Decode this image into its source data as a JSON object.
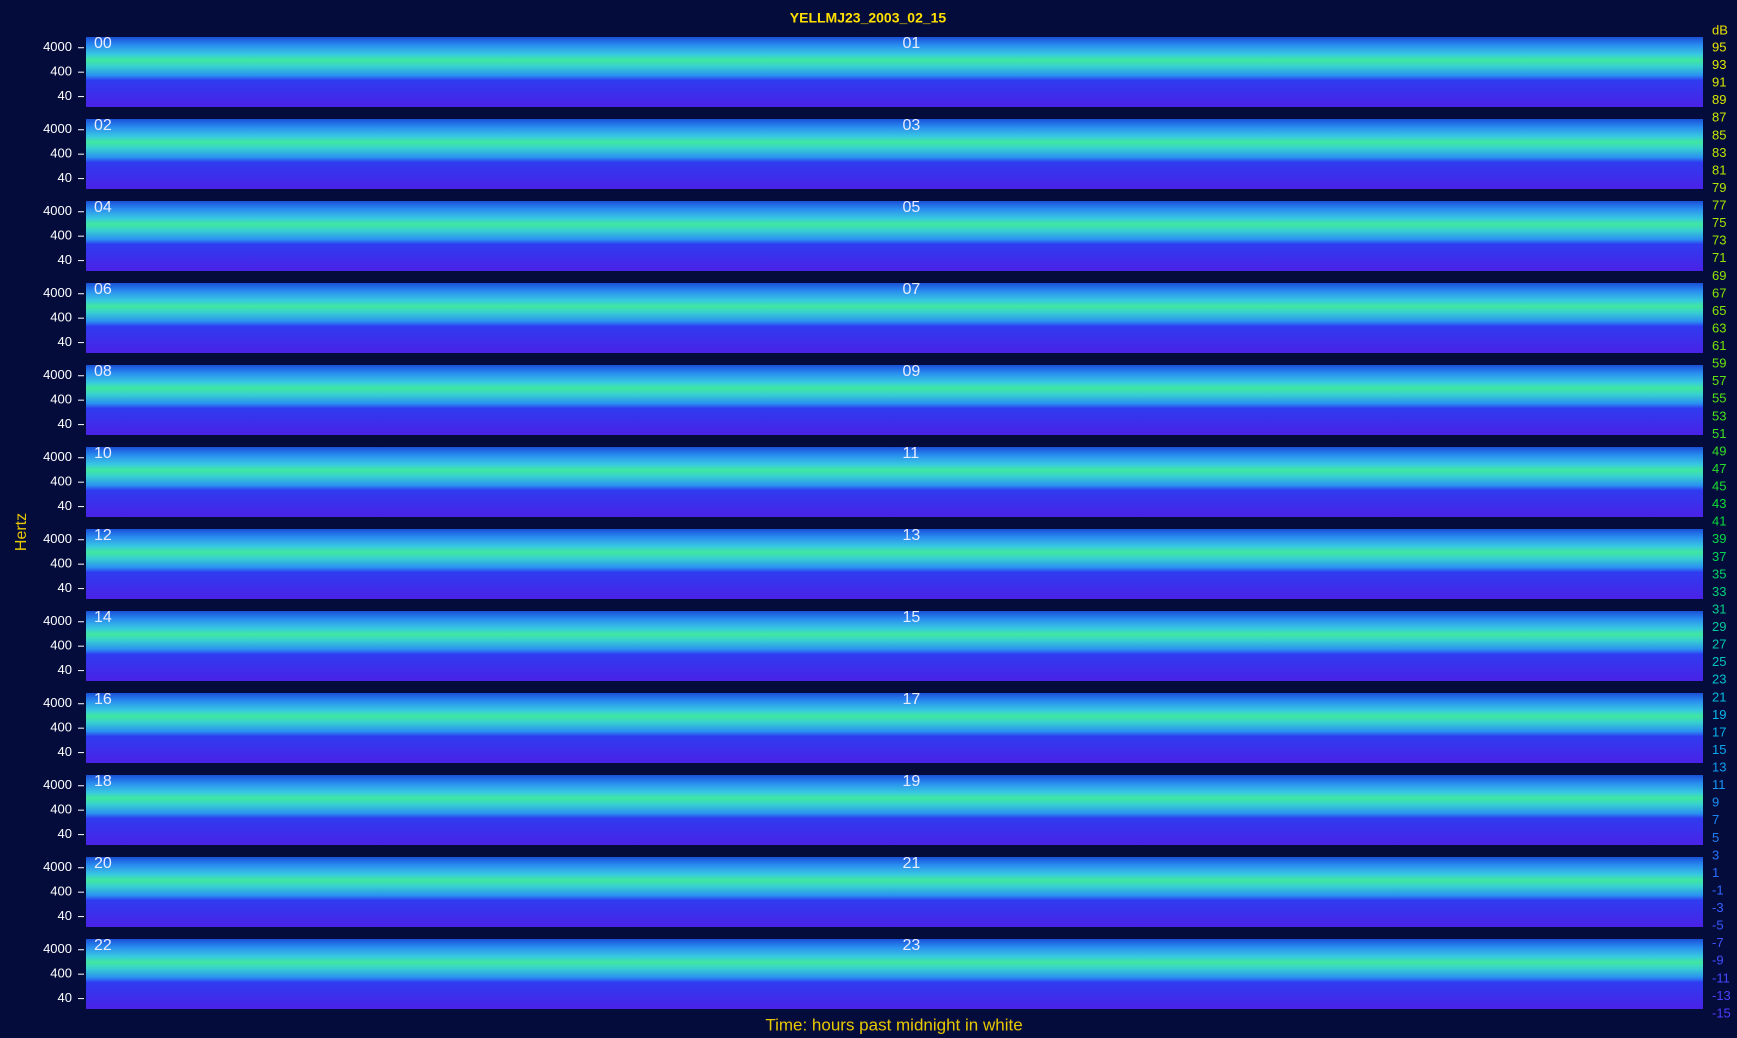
{
  "chart_data": {
    "type": "spectrogram",
    "title": "YELLMJ23_2003_02_15",
    "y_label": "Hertz",
    "x_label": "Time: hours past midnight in white",
    "log_scale": true,
    "ylim": [
      15,
      11000
    ],
    "yticks": [
      4000,
      400,
      40
    ],
    "panels": [
      "00",
      "01",
      "02",
      "03",
      "04",
      "05",
      "06",
      "07",
      "08",
      "09",
      "10",
      "11",
      "12",
      "13",
      "14",
      "15",
      "16",
      "17",
      "18",
      "19",
      "20",
      "21",
      "22",
      "23"
    ],
    "colorbar": {
      "label": "dB",
      "lim": [
        -15,
        95
      ],
      "ticks": [
        95,
        93,
        91,
        89,
        87,
        85,
        83,
        81,
        79,
        77,
        75,
        73,
        71,
        69,
        67,
        65,
        63,
        61,
        59,
        57,
        55,
        53,
        51,
        49,
        47,
        45,
        43,
        41,
        39,
        37,
        35,
        33,
        31,
        29,
        27,
        25,
        23,
        21,
        19,
        17,
        15,
        13,
        11,
        9,
        7,
        5,
        3,
        1,
        -1,
        -3,
        -5,
        -7,
        -9,
        -11,
        -13,
        -15
      ]
    }
  }
}
